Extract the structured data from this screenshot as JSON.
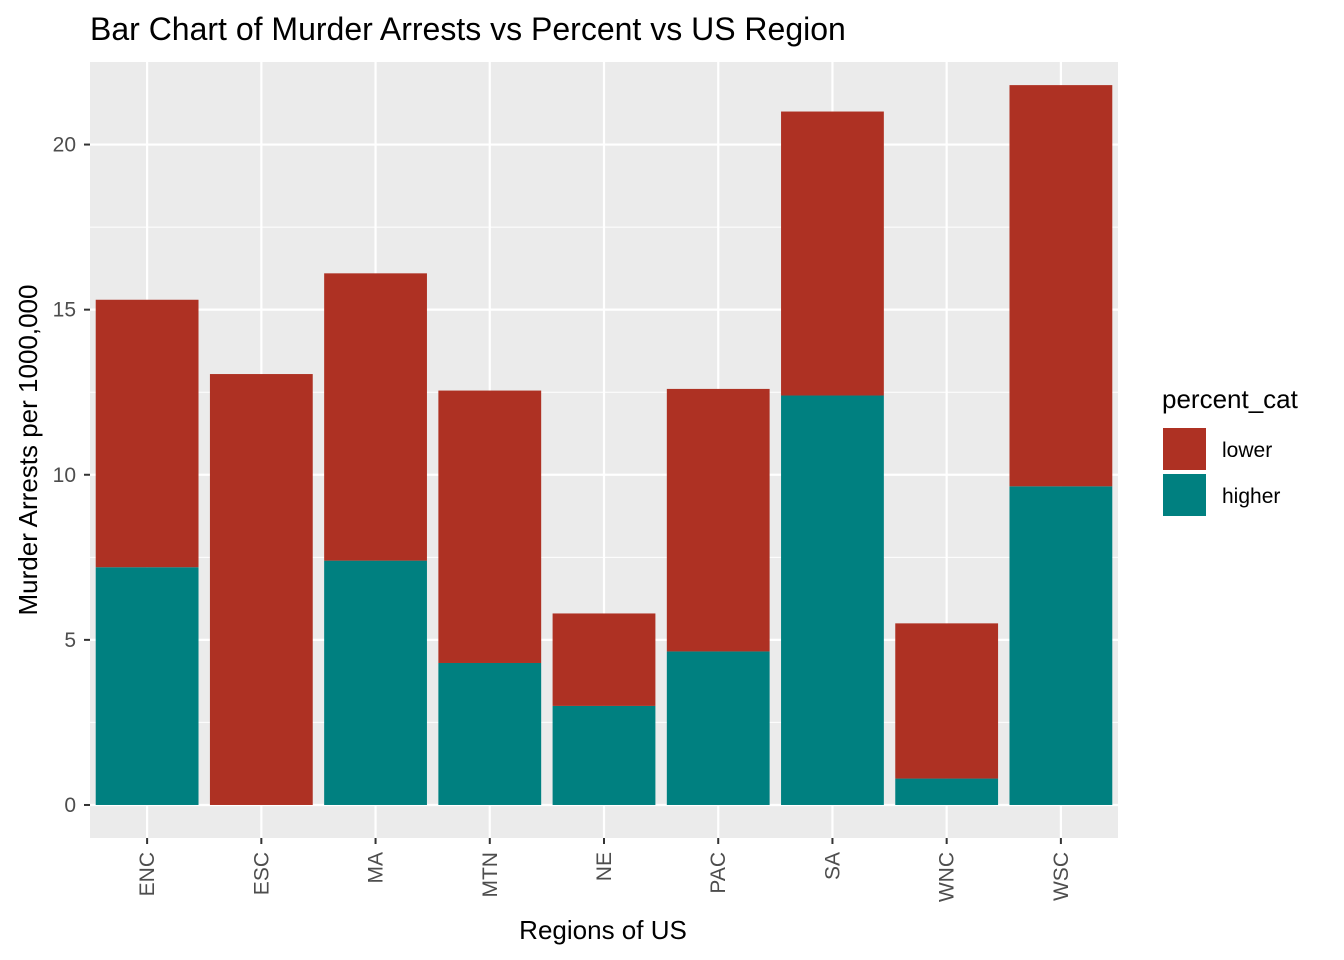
{
  "chart_data": {
    "type": "bar",
    "stacked": true,
    "title": "Bar Chart of Murder Arrests vs Percent vs US Region",
    "xlabel": "Regions of US",
    "ylabel": "Murder Arrests per 1000,000",
    "categories": [
      "ENC",
      "ESC",
      "MA",
      "MTN",
      "NE",
      "PAC",
      "SA",
      "WNC",
      "WSC"
    ],
    "series": [
      {
        "name": "higher",
        "color": "#008080",
        "values": [
          7.2,
          0.0,
          7.4,
          4.3,
          3.0,
          4.65,
          12.4,
          0.8,
          9.65
        ]
      },
      {
        "name": "lower",
        "color": "#ae3123",
        "values": [
          8.1,
          13.05,
          8.7,
          8.25,
          2.8,
          7.95,
          8.6,
          4.7,
          12.15
        ]
      }
    ],
    "ylim": [
      -1,
      22.5
    ],
    "yticks": [
      0,
      5,
      10,
      15,
      20
    ],
    "ytick_labels": [
      "0",
      "5",
      "10",
      "15",
      "20"
    ],
    "grid": true,
    "panel_background": "#ebebeb",
    "grid_color": "#ffffff",
    "legend": {
      "title": "percent_cat",
      "position": "right",
      "entries": [
        {
          "label": "lower",
          "color": "#ae3123"
        },
        {
          "label": "higher",
          "color": "#008080"
        }
      ]
    }
  }
}
